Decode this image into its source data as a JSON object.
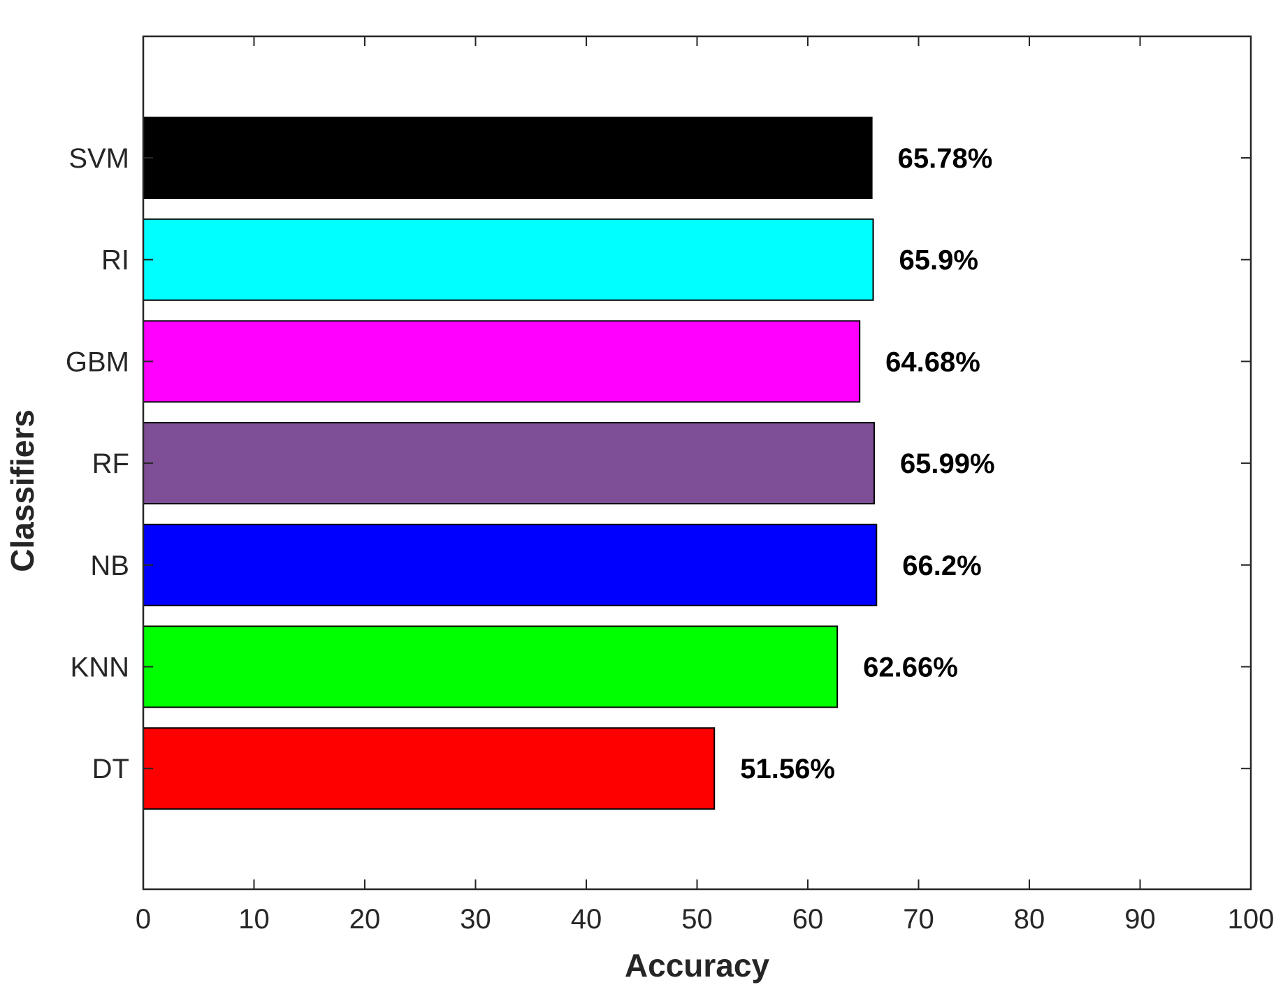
{
  "chart_data": {
    "type": "bar",
    "orientation": "horizontal",
    "categories": [
      "SVM",
      "RI",
      "GBM",
      "RF",
      "NB",
      "KNN",
      "DT"
    ],
    "values": [
      65.78,
      65.9,
      64.68,
      65.99,
      66.2,
      62.66,
      51.56
    ],
    "data_labels": [
      "65.78%",
      "65.9%",
      "64.68%",
      "65.99%",
      "66.2%",
      "62.66%",
      "51.56%"
    ],
    "colors": [
      "#000000",
      "#00ffff",
      "#ff00ff",
      "#7e4f96",
      "#0000ff",
      "#00ff00",
      "#ff0000"
    ],
    "xlabel": "Accuracy",
    "ylabel": "Classifiers",
    "xlim": [
      0,
      100
    ],
    "xticks": [
      0,
      10,
      20,
      30,
      40,
      50,
      60,
      70,
      80,
      90,
      100
    ],
    "xtick_labels": [
      "0",
      "10",
      "20",
      "30",
      "40",
      "50",
      "60",
      "70",
      "80",
      "90",
      "100"
    ],
    "grid": false,
    "legend": "none"
  }
}
